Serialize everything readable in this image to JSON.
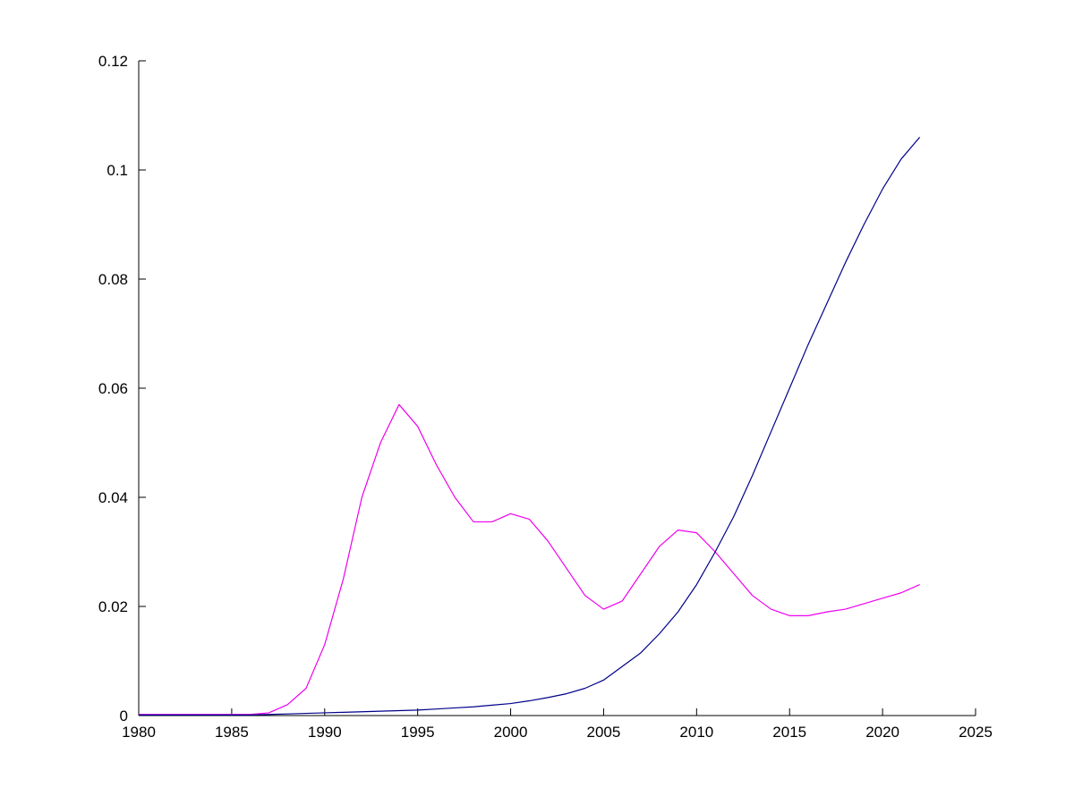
{
  "plot": {
    "background": "#ffffff",
    "axis_color": "#000000",
    "tick_length": 8,
    "line_width": 1.2
  },
  "chart_data": {
    "type": "line",
    "title": "",
    "xlabel": "",
    "ylabel": "",
    "grid": false,
    "legend": "none",
    "xlim": [
      1980,
      2025
    ],
    "ylim": [
      0,
      0.12
    ],
    "xticks": [
      1980,
      1985,
      1990,
      1995,
      2000,
      2005,
      2010,
      2015,
      2020,
      2025
    ],
    "yticks": [
      0,
      0.02,
      0.04,
      0.06,
      0.08,
      0.1,
      0.12
    ],
    "x": [
      1980,
      1981,
      1982,
      1983,
      1984,
      1985,
      1986,
      1987,
      1988,
      1989,
      1990,
      1991,
      1992,
      1993,
      1994,
      1995,
      1996,
      1997,
      1998,
      1999,
      2000,
      2001,
      2002,
      2003,
      2004,
      2005,
      2006,
      2007,
      2008,
      2009,
      2010,
      2011,
      2012,
      2013,
      2014,
      2015,
      2016,
      2017,
      2018,
      2019,
      2020,
      2021,
      2022
    ],
    "series": [
      {
        "name": "magenta-series",
        "color": "#EE00EE",
        "values": [
          0.0002,
          0.0002,
          0.0002,
          0.0002,
          0.0002,
          0.0002,
          0.0002,
          0.0005,
          0.002,
          0.005,
          0.013,
          0.025,
          0.04,
          0.05,
          0.057,
          0.053,
          0.046,
          0.04,
          0.0355,
          0.0355,
          0.037,
          0.036,
          0.032,
          0.027,
          0.022,
          0.0195,
          0.021,
          0.026,
          0.031,
          0.034,
          0.0335,
          0.03,
          0.026,
          0.022,
          0.0195,
          0.0183,
          0.0183,
          0.019,
          0.0195,
          0.0205,
          0.0215,
          0.0225,
          0.024
        ]
      },
      {
        "name": "blue-series",
        "color": "#00008B",
        "values": [
          0.0001,
          0.0001,
          0.0001,
          0.0001,
          0.0001,
          0.0001,
          0.0001,
          0.0002,
          0.0003,
          0.0004,
          0.0005,
          0.0006,
          0.0007,
          0.0008,
          0.0009,
          0.001,
          0.0012,
          0.0014,
          0.0016,
          0.0019,
          0.0022,
          0.0027,
          0.0033,
          0.004,
          0.005,
          0.0065,
          0.009,
          0.0115,
          0.015,
          0.019,
          0.024,
          0.03,
          0.0365,
          0.044,
          0.052,
          0.06,
          0.068,
          0.0755,
          0.083,
          0.09,
          0.0965,
          0.102,
          0.106
        ]
      }
    ]
  }
}
